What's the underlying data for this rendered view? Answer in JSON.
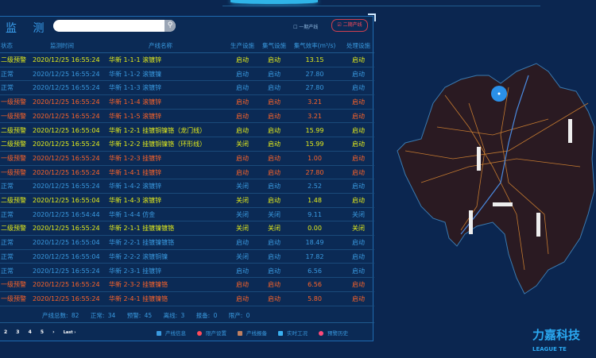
{
  "header": {
    "title": "监 测",
    "search_placeholder": "",
    "toggle_phase1": "一期产线",
    "toggle_phase2": "二期产线"
  },
  "colors": {
    "warn2": "#e6ee1a",
    "warn1": "#ff6428",
    "normal": "#3a9ae0",
    "bg": "#0b2650"
  },
  "table": {
    "columns": [
      "状态",
      "监测时间",
      "产线名称",
      "生产设施",
      "集气设施",
      "集气效率(m³/s)",
      "处理设施"
    ],
    "rows": [
      [
        "二级预警",
        "2020/12/25 16:55:24",
        "华新 1-1-1 滚镀锌",
        "启动",
        "启动",
        "13.15",
        "启动",
        "warn2"
      ],
      [
        "正常",
        "2020/12/25 16:55:24",
        "华新 1-1-2 滚镀镍",
        "启动",
        "启动",
        "27.80",
        "启动",
        "normal"
      ],
      [
        "正常",
        "2020/12/25 16:55:24",
        "华新 1-1-3 滚镀锌",
        "启动",
        "启动",
        "27.80",
        "启动",
        "normal"
      ],
      [
        "一级预警",
        "2020/12/25 16:55:24",
        "华新 1-1-4 滚镀锌",
        "启动",
        "启动",
        "3.21",
        "启动",
        "warn1"
      ],
      [
        "一级预警",
        "2020/12/25 16:55:24",
        "华新 1-1-5 滚镀锌",
        "启动",
        "启动",
        "3.21",
        "启动",
        "warn1"
      ],
      [
        "二级预警",
        "2020/12/25 16:55:04",
        "华新 1-2-1 挂镀铜镍铬（龙门线）",
        "启动",
        "启动",
        "15.99",
        "启动",
        "warn2"
      ],
      [
        "二级预警",
        "2020/12/25 16:55:24",
        "华新 1-2-2 挂镀铜镍铬（环形线）",
        "关闭",
        "启动",
        "15.99",
        "启动",
        "warn2"
      ],
      [
        "一级预警",
        "2020/12/25 16:55:24",
        "华新 1-2-3 挂镀锌",
        "启动",
        "启动",
        "1.00",
        "启动",
        "warn1"
      ],
      [
        "一级预警",
        "2020/12/25 16:55:24",
        "华新 1-4-1 挂镀锌",
        "启动",
        "启动",
        "27.80",
        "启动",
        "warn1"
      ],
      [
        "正常",
        "2020/12/25 16:55:24",
        "华新 1-4-2 滚镀锌",
        "关闭",
        "启动",
        "2.52",
        "启动",
        "normal"
      ],
      [
        "二级预警",
        "2020/12/25 16:55:04",
        "华新 1-4-3 滚镀锌",
        "关闭",
        "启动",
        "1.48",
        "启动",
        "warn2"
      ],
      [
        "正常",
        "2020/12/25 16:54:44",
        "华新 1-4-4 仿金",
        "关闭",
        "关闭",
        "9.11",
        "关闭",
        "normal"
      ],
      [
        "二级预警",
        "2020/12/25 16:55:24",
        "华新 2-1-1 挂镀镍镀铬",
        "关闭",
        "关闭",
        "0.00",
        "关闭",
        "warn2"
      ],
      [
        "正常",
        "2020/12/25 16:55:04",
        "华新 2-2-1 挂镀镍镀铬",
        "启动",
        "启动",
        "18.49",
        "启动",
        "normal"
      ],
      [
        "正常",
        "2020/12/25 16:55:04",
        "华新 2-2-2 滚镀铜镍",
        "关闭",
        "启动",
        "17.82",
        "启动",
        "normal"
      ],
      [
        "正常",
        "2020/12/25 16:55:24",
        "华新 2-3-1 挂镀锌",
        "启动",
        "启动",
        "6.56",
        "启动",
        "normal"
      ],
      [
        "一级预警",
        "2020/12/25 16:55:24",
        "华新 2-3-2 挂镀镍铬",
        "启动",
        "启动",
        "6.56",
        "启动",
        "warn1"
      ],
      [
        "一级预警",
        "2020/12/25 16:55:24",
        "华新 2-4-1 挂镀镍铬",
        "启动",
        "启动",
        "5.80",
        "启动",
        "warn1"
      ]
    ]
  },
  "summary": {
    "total": "产线总数: 82",
    "normal": "正常: 34",
    "warning": "预警: 45",
    "offline": "离线: 3",
    "report": "报备: 0",
    "limit": "限产: 0"
  },
  "pagination": {
    "pages": [
      "2",
      "3",
      "4",
      "5"
    ],
    "next": "›",
    "last": "Last ›"
  },
  "actions": [
    {
      "label": "产线信息",
      "icon": "info-icon",
      "color": "#3a9ae0"
    },
    {
      "label": "限产设置",
      "icon": "limit-icon",
      "color": "#ff4a5a"
    },
    {
      "label": "产线报备",
      "icon": "warning-triangle-icon",
      "color": "#c08060"
    },
    {
      "label": "实时工况",
      "icon": "realtime-icon",
      "color": "#3ab0f0"
    },
    {
      "label": "预警历史",
      "icon": "alarm-history-icon",
      "color": "#ff4a7a"
    }
  ],
  "logo": {
    "text": "力嘉科技",
    "sub": "LEAGUE TE"
  }
}
